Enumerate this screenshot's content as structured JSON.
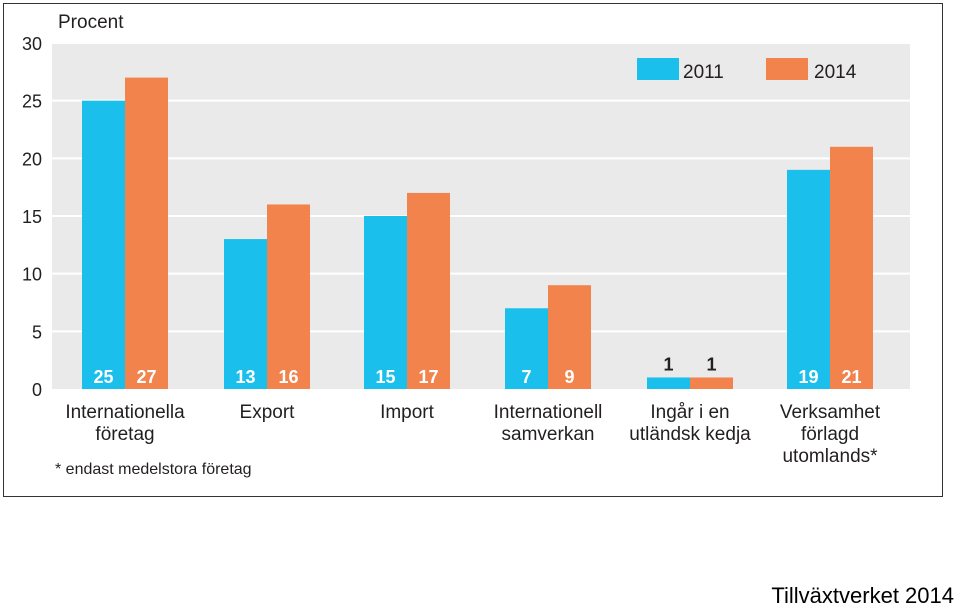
{
  "colors": {
    "series_2011": "#1ABFEC",
    "series_2014": "#F2834D",
    "plot_background": "#EAEAEA",
    "gridline": "#FFFFFF",
    "text": "#231F20",
    "value_label": "#FFFFFF"
  },
  "source": "Tillväxtverket 2014",
  "chart_data": {
    "type": "bar",
    "title": "",
    "xlabel": "",
    "ylabel": "Procent",
    "ylim": [
      0,
      30
    ],
    "yticks": [
      0,
      5,
      10,
      15,
      20,
      25,
      30
    ],
    "grid": true,
    "legend_position": "top-right",
    "categories": [
      [
        "Internationella",
        "företag"
      ],
      [
        "Export"
      ],
      [
        "Import"
      ],
      [
        "Internationell",
        "samverkan"
      ],
      [
        "Ingår i en",
        "utländsk kedja"
      ],
      [
        "Verksamhet",
        "förlagd",
        "utomlands*"
      ]
    ],
    "series": [
      {
        "name": "2011",
        "values": [
          25,
          13,
          15,
          7,
          1,
          19
        ]
      },
      {
        "name": "2014",
        "values": [
          27,
          16,
          17,
          9,
          1,
          21
        ]
      }
    ],
    "footnote": "* endast medelstora företag"
  }
}
